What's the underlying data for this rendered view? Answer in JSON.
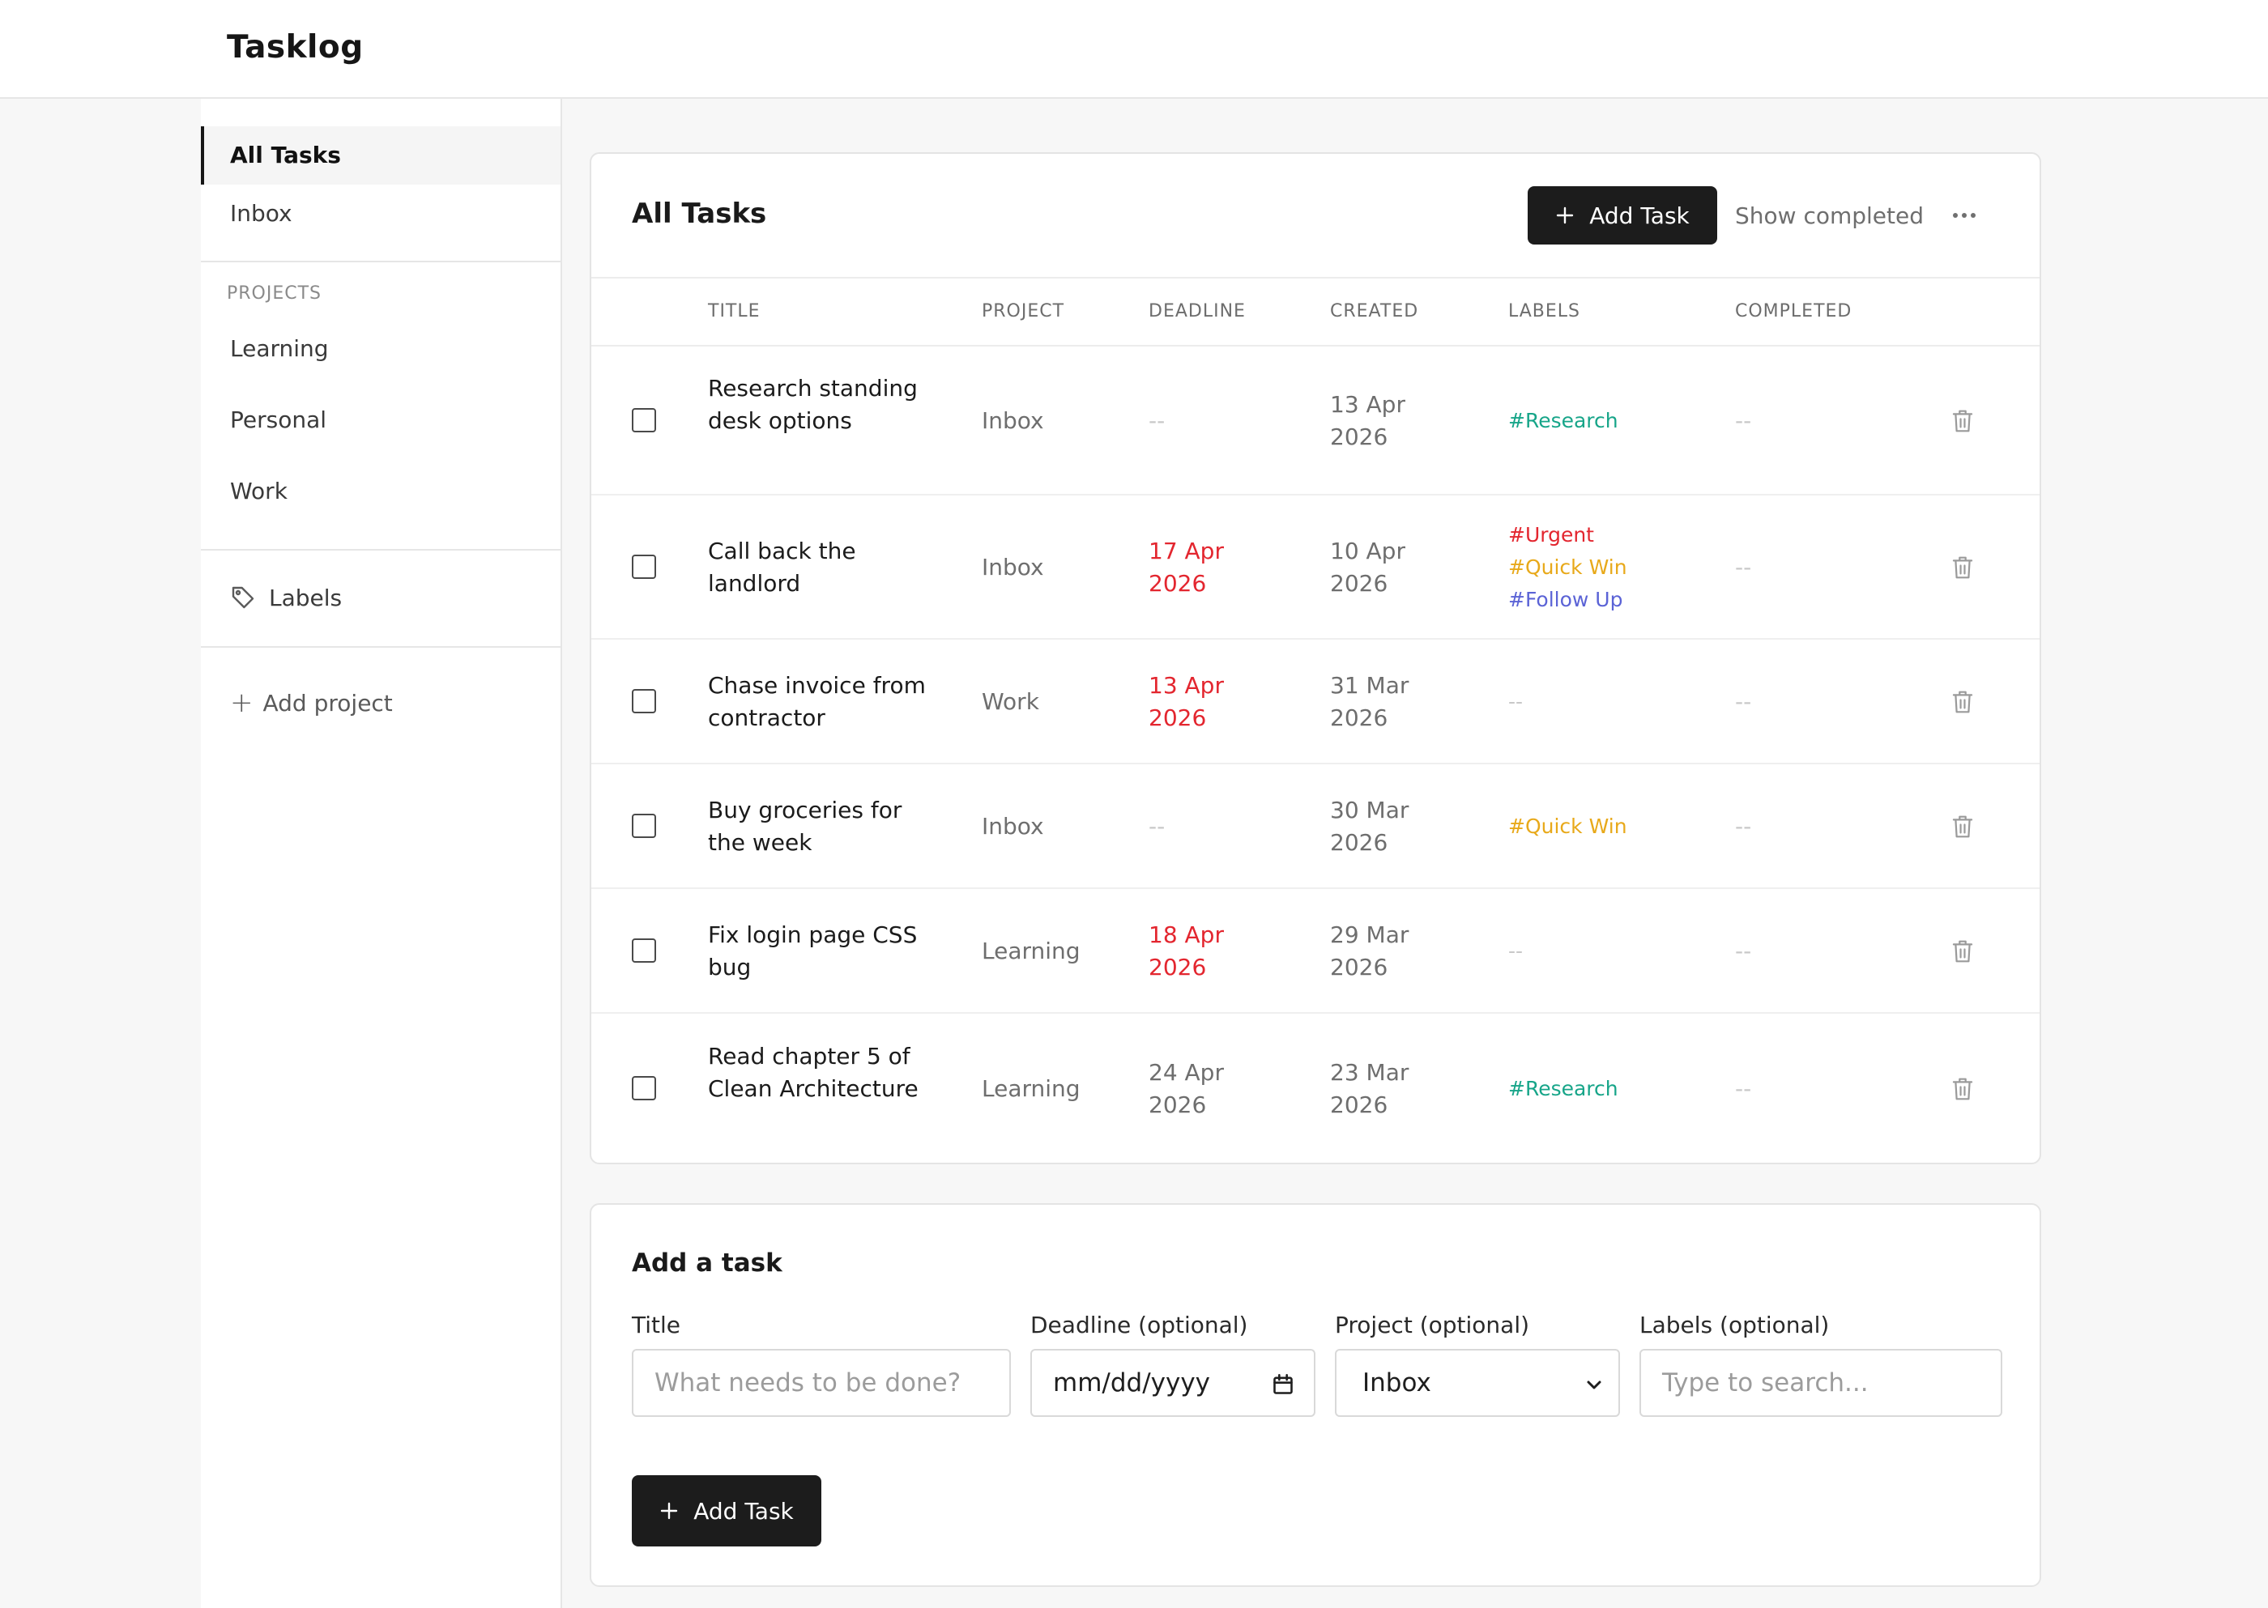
{
  "app": {
    "title": "Tasklog"
  },
  "sidebar": {
    "nav": [
      {
        "label": "All Tasks",
        "active": true
      },
      {
        "label": "Inbox",
        "active": false
      }
    ],
    "projects_heading": "PROJECTS",
    "projects": [
      "Learning",
      "Personal",
      "Work"
    ],
    "labels_link": "Labels",
    "add_project": "Add project"
  },
  "tasks": {
    "title": "All Tasks",
    "add_button": "Add Task",
    "show_completed": "Show completed",
    "columns": [
      "TITLE",
      "PROJECT",
      "DEADLINE",
      "CREATED",
      "LABELS",
      "COMPLETED"
    ],
    "rows": [
      {
        "title": "Research standing desk options",
        "project": "Inbox",
        "deadline": "--",
        "deadline_overdue": false,
        "created": "13 Apr 2026",
        "labels": [
          "#Research"
        ],
        "completed": "--"
      },
      {
        "title": "Call back the landlord",
        "project": "Inbox",
        "deadline": "17 Apr 2026",
        "deadline_overdue": true,
        "created": "10 Apr 2026",
        "labels": [
          "#Urgent",
          "#Quick Win",
          "#Follow Up"
        ],
        "completed": "--"
      },
      {
        "title": "Chase invoice from contractor",
        "project": "Work",
        "deadline": "13 Apr 2026",
        "deadline_overdue": true,
        "created": "31 Mar 2026",
        "labels": [],
        "labels_empty": "--",
        "completed": "--"
      },
      {
        "title": "Buy groceries for the week",
        "project": "Inbox",
        "deadline": "--",
        "deadline_overdue": false,
        "created": "30 Mar 2026",
        "labels": [
          "#Quick Win"
        ],
        "completed": "--"
      },
      {
        "title": "Fix login page CSS bug",
        "project": "Learning",
        "deadline": "18 Apr 2026",
        "deadline_overdue": true,
        "created": "29 Mar 2026",
        "labels": [],
        "labels_empty": "--",
        "completed": "--"
      },
      {
        "title": "Read chapter 5 of Clean Architecture",
        "project": "Learning",
        "deadline": "24 Apr 2026",
        "deadline_overdue": false,
        "created": "23 Mar 2026",
        "labels": [
          "#Research"
        ],
        "completed": "--"
      }
    ]
  },
  "label_colors": {
    "#Research": "#17a589",
    "#Urgent": "#e3262f",
    "#Quick Win": "#e8a91a",
    "#Follow Up": "#5b63d6"
  },
  "add_form": {
    "title": "Add a task",
    "title_label": "Title",
    "title_placeholder": "What needs to be done?",
    "deadline_label": "Deadline (optional)",
    "deadline_value": "mm/dd/yyyy",
    "project_label": "Project (optional)",
    "project_value": "Inbox",
    "labels_label": "Labels (optional)",
    "labels_placeholder": "Type to search...",
    "submit": "Add Task"
  },
  "colors": {
    "accent_dark": "#1c1c1c",
    "overdue": "#e3262f"
  }
}
